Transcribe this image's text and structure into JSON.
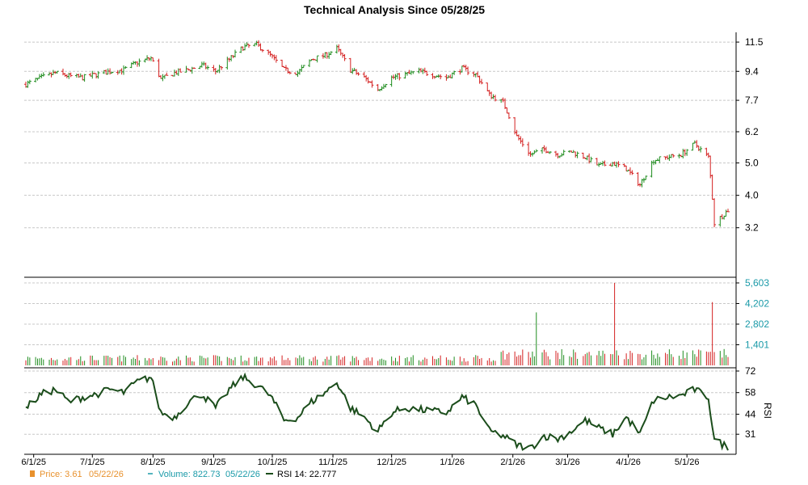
{
  "chart_data": {
    "type": "ohlc",
    "title": "Technical Analysis Since 05/28/25",
    "colors": {
      "up": "#1e8c1e",
      "down": "#d42020",
      "rsi": "#1b4d1b",
      "volume_label": "#1a9aa8",
      "price_label": "#e8912d"
    },
    "price_panel": {
      "scale": "log",
      "ylim": [
        2.3,
        12.3
      ],
      "ticks": [
        "11.5",
        "9.4",
        "7.7",
        "6.2",
        "5.0",
        "4.0",
        "3.2"
      ],
      "tick_values": [
        11.5,
        9.4,
        7.7,
        6.2,
        5.0,
        4.0,
        3.2
      ],
      "grid": true
    },
    "volume_panel": {
      "ylim": [
        0,
        5603
      ],
      "ticks": [
        "5,603",
        "4,202",
        "2,802",
        "1,401"
      ],
      "tick_values": [
        5603,
        4202,
        2802,
        1401
      ],
      "grid": true
    },
    "rsi_panel": {
      "label": "RSI",
      "ylim": [
        18,
        72
      ],
      "ticks": [
        "72",
        "58",
        "44",
        "31"
      ],
      "tick_values": [
        72,
        58,
        44,
        31
      ],
      "grid": true
    },
    "x_axis": {
      "start_date": "2025-05-28",
      "end_date": "2026-05-22",
      "ticks": [
        {
          "label": "6/1/25",
          "date": "2025-06-01"
        },
        {
          "label": "7/1/25",
          "date": "2025-07-01"
        },
        {
          "label": "8/1/25",
          "date": "2025-08-01"
        },
        {
          "label": "9/1/25",
          "date": "2025-09-01"
        },
        {
          "label": "10/1/25",
          "date": "2025-10-01"
        },
        {
          "label": "11/1/25",
          "date": "2025-11-01"
        },
        {
          "label": "12/1/25",
          "date": "2025-12-01"
        },
        {
          "label": "1/1/26",
          "date": "2026-01-01"
        },
        {
          "label": "2/1/26",
          "date": "2026-02-01"
        },
        {
          "label": "3/1/26",
          "date": "2026-03-01"
        },
        {
          "label": "4/1/26",
          "date": "2026-04-01"
        },
        {
          "label": "5/1/26",
          "date": "2026-05-01"
        }
      ]
    },
    "price_series": [
      [
        "2025-05-28",
        8.6
      ],
      [
        "2025-06-05",
        9.0
      ],
      [
        "2025-06-12",
        9.3
      ],
      [
        "2025-06-19",
        9.1
      ],
      [
        "2025-06-26",
        9.0
      ],
      [
        "2025-07-03",
        9.2
      ],
      [
        "2025-07-10",
        9.4
      ],
      [
        "2025-07-17",
        9.5
      ],
      [
        "2025-07-24",
        10.0
      ],
      [
        "2025-07-31",
        10.3
      ],
      [
        "2025-08-05",
        8.9
      ],
      [
        "2025-08-12",
        9.3
      ],
      [
        "2025-08-19",
        9.5
      ],
      [
        "2025-08-26",
        9.8
      ],
      [
        "2025-09-02",
        9.4
      ],
      [
        "2025-09-09",
        10.2
      ],
      [
        "2025-09-16",
        11.1
      ],
      [
        "2025-09-23",
        11.3
      ],
      [
        "2025-09-30",
        10.5
      ],
      [
        "2025-10-07",
        9.5
      ],
      [
        "2025-10-14",
        9.3
      ],
      [
        "2025-10-21",
        10.2
      ],
      [
        "2025-10-28",
        10.5
      ],
      [
        "2025-11-03",
        11.0
      ],
      [
        "2025-11-10",
        9.5
      ],
      [
        "2025-11-17",
        9.0
      ],
      [
        "2025-11-24",
        8.3
      ],
      [
        "2025-12-01",
        9.0
      ],
      [
        "2025-12-08",
        9.2
      ],
      [
        "2025-12-15",
        9.4
      ],
      [
        "2025-12-22",
        9.2
      ],
      [
        "2025-12-29",
        9.0
      ],
      [
        "2026-01-06",
        9.6
      ],
      [
        "2026-01-13",
        9.2
      ],
      [
        "2026-01-20",
        8.0
      ],
      [
        "2026-01-27",
        7.6
      ],
      [
        "2026-02-03",
        6.0
      ],
      [
        "2026-02-10",
        5.3
      ],
      [
        "2026-02-17",
        5.5
      ],
      [
        "2026-02-24",
        5.3
      ],
      [
        "2026-03-03",
        5.4
      ],
      [
        "2026-03-10",
        5.2
      ],
      [
        "2026-03-17",
        4.9
      ],
      [
        "2026-03-24",
        5.0
      ],
      [
        "2026-03-31",
        4.8
      ],
      [
        "2026-04-07",
        4.3
      ],
      [
        "2026-04-14",
        5.1
      ],
      [
        "2026-04-21",
        5.2
      ],
      [
        "2026-04-28",
        5.3
      ],
      [
        "2026-05-05",
        5.7
      ],
      [
        "2026-05-12",
        5.2
      ],
      [
        "2026-05-15",
        3.3
      ],
      [
        "2026-05-22",
        3.61
      ]
    ],
    "volume_spikes": [
      [
        "2026-02-13",
        3600
      ],
      [
        "2026-03-25",
        5603
      ],
      [
        "2026-05-14",
        4300
      ]
    ],
    "rsi_series": [
      [
        "2025-05-28",
        48
      ],
      [
        "2025-06-05",
        57
      ],
      [
        "2025-06-12",
        60
      ],
      [
        "2025-06-19",
        52
      ],
      [
        "2025-06-26",
        55
      ],
      [
        "2025-07-03",
        57
      ],
      [
        "2025-07-10",
        60
      ],
      [
        "2025-07-17",
        58
      ],
      [
        "2025-07-24",
        65
      ],
      [
        "2025-07-31",
        68
      ],
      [
        "2025-08-05",
        45
      ],
      [
        "2025-08-12",
        42
      ],
      [
        "2025-08-19",
        52
      ],
      [
        "2025-08-26",
        57
      ],
      [
        "2025-09-02",
        48
      ],
      [
        "2025-09-09",
        60
      ],
      [
        "2025-09-16",
        68
      ],
      [
        "2025-09-23",
        63
      ],
      [
        "2025-09-30",
        56
      ],
      [
        "2025-10-07",
        40
      ],
      [
        "2025-10-14",
        42
      ],
      [
        "2025-10-21",
        52
      ],
      [
        "2025-10-28",
        58
      ],
      [
        "2025-11-03",
        65
      ],
      [
        "2025-11-10",
        48
      ],
      [
        "2025-11-17",
        42
      ],
      [
        "2025-11-24",
        33
      ],
      [
        "2025-12-01",
        45
      ],
      [
        "2025-12-08",
        48
      ],
      [
        "2025-12-15",
        47
      ],
      [
        "2025-12-22",
        46
      ],
      [
        "2025-12-29",
        45
      ],
      [
        "2026-01-06",
        55
      ],
      [
        "2026-01-13",
        50
      ],
      [
        "2026-01-20",
        33
      ],
      [
        "2026-01-27",
        30
      ],
      [
        "2026-02-03",
        24
      ],
      [
        "2026-02-10",
        22
      ],
      [
        "2026-02-17",
        30
      ],
      [
        "2026-02-24",
        28
      ],
      [
        "2026-03-03",
        33
      ],
      [
        "2026-03-10",
        40
      ],
      [
        "2026-03-17",
        35
      ],
      [
        "2026-03-24",
        31
      ],
      [
        "2026-03-31",
        42
      ],
      [
        "2026-04-07",
        31
      ],
      [
        "2026-04-14",
        53
      ],
      [
        "2026-04-21",
        55
      ],
      [
        "2026-04-28",
        56
      ],
      [
        "2026-05-05",
        60
      ],
      [
        "2026-05-12",
        55
      ],
      [
        "2026-05-15",
        27
      ],
      [
        "2026-05-22",
        22.777
      ]
    ]
  },
  "legend": {
    "price": {
      "label": "Price: 3.61",
      "date": "05/22/26"
    },
    "volume": {
      "label": "Volume: 822.73",
      "date": "05/22/26"
    },
    "rsi": {
      "label": "RSI 14: 22.777"
    }
  }
}
